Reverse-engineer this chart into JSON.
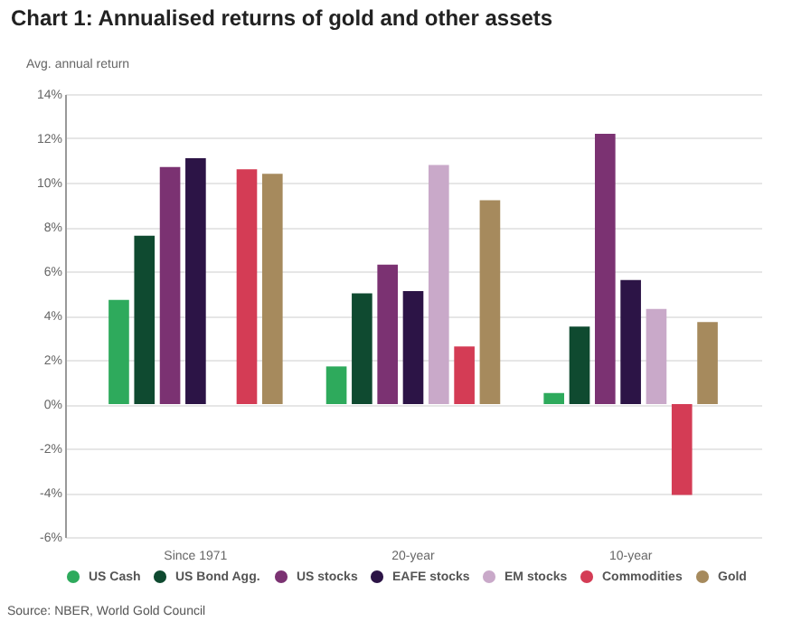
{
  "chart_data": {
    "type": "bar",
    "title": "Chart 1: Annualised returns of gold and other assets",
    "ylabel": "Avg. annual return",
    "categories": [
      "Since 1971",
      "20-year",
      "10-year"
    ],
    "series": [
      {
        "name": "US Cash",
        "color": "#2eaa5c",
        "values": [
          4.7,
          1.7,
          0.5
        ]
      },
      {
        "name": "US Bond Agg.",
        "color": "#0f4a30",
        "values": [
          7.6,
          5.0,
          3.5
        ]
      },
      {
        "name": "US stocks",
        "color": "#7b3272",
        "values": [
          10.7,
          6.3,
          12.2
        ]
      },
      {
        "name": "EAFE stocks",
        "color": "#2c1446",
        "values": [
          11.1,
          5.1,
          5.6
        ]
      },
      {
        "name": "EM stocks",
        "color": "#c9a9c9",
        "values": [
          null,
          10.8,
          4.3
        ]
      },
      {
        "name": "Commodities",
        "color": "#d43c55",
        "values": [
          10.6,
          2.6,
          -4.1
        ]
      },
      {
        "name": "Gold",
        "color": "#a68a5d",
        "values": [
          10.4,
          9.2,
          3.7
        ]
      }
    ],
    "ylim": [
      -6,
      14
    ],
    "yticks": [
      {
        "value": -6,
        "label": "-6%"
      },
      {
        "value": -4,
        "label": "-4%"
      },
      {
        "value": -2,
        "label": "-2%"
      },
      {
        "value": 0,
        "label": "0%"
      },
      {
        "value": 2,
        "label": "2%"
      },
      {
        "value": 4,
        "label": "4%"
      },
      {
        "value": 6,
        "label": "6%"
      },
      {
        "value": 8,
        "label": "8%"
      },
      {
        "value": 10,
        "label": "10%"
      },
      {
        "value": 12,
        "label": "12%"
      },
      {
        "value": 14,
        "label": "14%"
      }
    ],
    "grid": "y",
    "legend": "bottom",
    "annotations": [
      "Source: NBER, World Gold Council"
    ]
  }
}
